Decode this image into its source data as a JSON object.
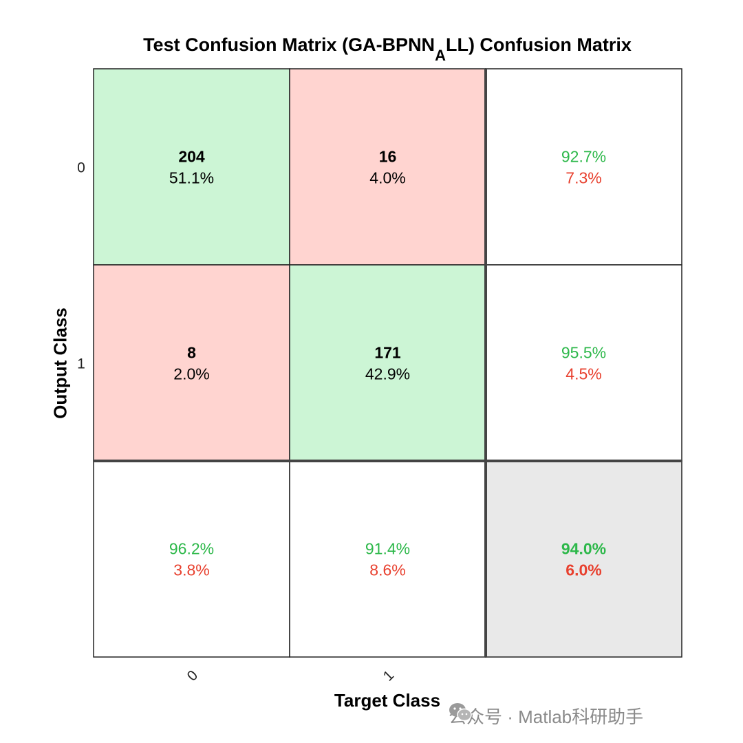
{
  "title": {
    "main": "Test Confusion Matrix (GA-BPNN",
    "subscript": "A",
    "tail": "LL) Confusion Matrix"
  },
  "chart_data": {
    "type": "heatmap",
    "xlabel": "Target Class",
    "ylabel": "Output Class",
    "x_tick_labels": [
      "0",
      "1"
    ],
    "y_tick_labels": [
      "0",
      "1"
    ],
    "cells": [
      [
        {
          "count": "204",
          "pct": "51.1%",
          "kind": "correct"
        },
        {
          "count": "16",
          "pct": "4.0%",
          "kind": "wrong"
        }
      ],
      [
        {
          "count": "8",
          "pct": "2.0%",
          "kind": "wrong"
        },
        {
          "count": "171",
          "pct": "42.9%",
          "kind": "correct"
        }
      ]
    ],
    "row_summary": [
      {
        "correct": "92.7%",
        "wrong": "7.3%"
      },
      {
        "correct": "95.5%",
        "wrong": "4.5%"
      }
    ],
    "col_summary": [
      {
        "correct": "96.2%",
        "wrong": "3.8%"
      },
      {
        "correct": "91.4%",
        "wrong": "8.6%"
      }
    ],
    "overall": {
      "correct": "94.0%",
      "wrong": "6.0%"
    },
    "colors": {
      "correct_fill": "#ccf5d5",
      "wrong_fill": "#ffd4d0",
      "overall_fill": "#e9e9e9",
      "correct_text": "#2db84a",
      "wrong_text": "#e8402e",
      "line": "#222222",
      "thick_line": "#444444"
    }
  },
  "watermark": {
    "icon": "wechat-icon",
    "text": "公众号 · Matlab科研助手"
  }
}
